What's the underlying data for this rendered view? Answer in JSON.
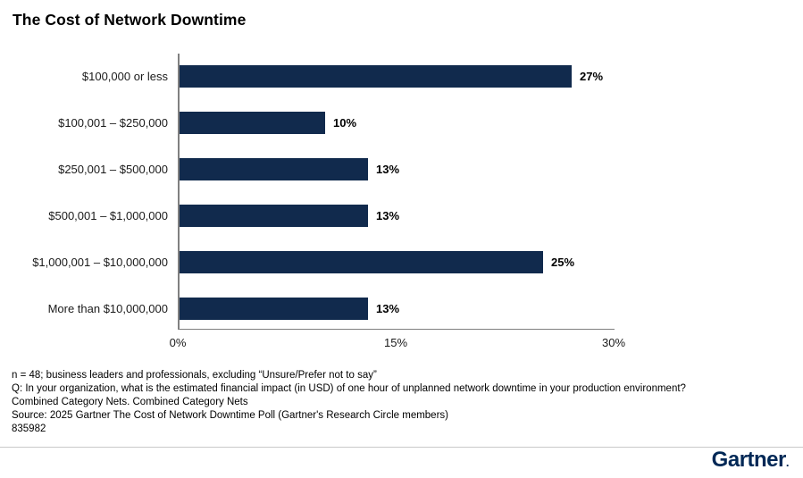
{
  "chart_data": {
    "type": "bar",
    "orientation": "horizontal",
    "title": "The Cost of Network Downtime",
    "categories": [
      "$100,000 or less",
      "$100,001 – $250,000",
      "$250,001 – $500,000",
      "$500,001 – $1,000,000",
      "$1,000,001 – $10,000,000",
      "More than $10,000,000"
    ],
    "values": [
      27,
      10,
      13,
      13,
      25,
      13
    ],
    "value_labels": [
      "27%",
      "10%",
      "13%",
      "13%",
      "25%",
      "13%"
    ],
    "xlabel": "",
    "ylabel": "",
    "xlim": [
      0,
      30
    ],
    "x_ticks": [
      {
        "label": "0%",
        "value": 0
      },
      {
        "label": "15%",
        "value": 15
      },
      {
        "label": "30%",
        "value": 30
      }
    ],
    "grid": false,
    "legend": null,
    "bar_color": "#112A4D",
    "axis_color": "#808080"
  },
  "footnotes": {
    "lines": [
      "n = 48; business leaders and professionals, excluding “Unsure/Prefer not to say”",
      "Q: In your organization, what is the estimated financial impact (in USD) of one hour of unplanned network downtime in your production environment?",
      "Combined Category Nets. Combined Category Nets",
      "Source: 2025 Gartner The Cost of Network Downtime Poll (Gartner's Research Circle members)",
      "835982"
    ]
  },
  "footer": {
    "logo_text": "Gartner",
    "logo_dot": ".",
    "logo_color": "#002856"
  }
}
